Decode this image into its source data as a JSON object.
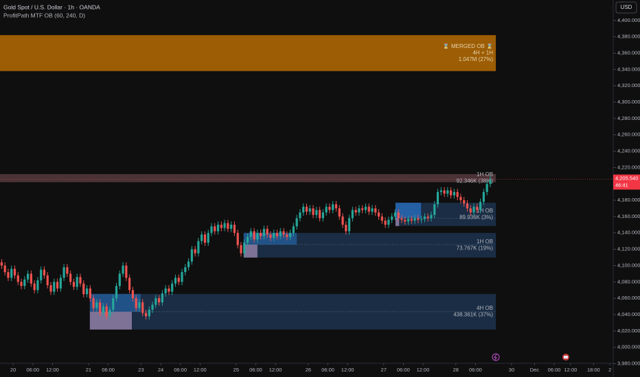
{
  "header": {
    "symbol": "Gold Spot / U.S. Dollar · 1h · OANDA",
    "indicator": "ProfitPath MTF OB (60, 240, D)",
    "currency": "USD"
  },
  "chart_data": {
    "type": "candlestick",
    "up_color": "#26a69a",
    "down_color": "#ef5350",
    "ylim": [
      3980,
      4425
    ],
    "xlim": [
      0,
      187
    ],
    "yticks": [
      {
        "value": 4400,
        "label": "4,400.000"
      },
      {
        "value": 4380,
        "label": "4,380.000"
      },
      {
        "value": 4360,
        "label": "4,360.000"
      },
      {
        "value": 4340,
        "label": "4,340.000"
      },
      {
        "value": 4320,
        "label": "4,320.000"
      },
      {
        "value": 4300,
        "label": "4,300.000"
      },
      {
        "value": 4280,
        "label": "4,280.000"
      },
      {
        "value": 4260,
        "label": "4,260.000"
      },
      {
        "value": 4240,
        "label": "4,240.000"
      },
      {
        "value": 4220,
        "label": "4,220.000"
      },
      {
        "value": 4200,
        "label": "4,200.000"
      },
      {
        "value": 4180,
        "label": "4,180.000"
      },
      {
        "value": 4160,
        "label": "4,160.000"
      },
      {
        "value": 4140,
        "label": "4,140.000"
      },
      {
        "value": 4120,
        "label": "4,120.000"
      },
      {
        "value": 4100,
        "label": "4,100.000"
      },
      {
        "value": 4080,
        "label": "4,080.000"
      },
      {
        "value": 4060,
        "label": "4,060.000"
      },
      {
        "value": 4040,
        "label": "4,040.000"
      },
      {
        "value": 4020,
        "label": "4,020.000"
      },
      {
        "value": 4000,
        "label": "4,000.000"
      },
      {
        "value": 3980,
        "label": "3,980.000"
      }
    ],
    "xticks": [
      {
        "value": 4,
        "label": "20"
      },
      {
        "value": 10,
        "label": "06:00"
      },
      {
        "value": 16,
        "label": "12:00"
      },
      {
        "value": 27,
        "label": "21"
      },
      {
        "value": 33,
        "label": "06:00"
      },
      {
        "value": 43,
        "label": "23"
      },
      {
        "value": 49,
        "label": "24"
      },
      {
        "value": 55,
        "label": "06:00"
      },
      {
        "value": 61,
        "label": "12:00"
      },
      {
        "value": 72,
        "label": "25"
      },
      {
        "value": 78,
        "label": "06:00"
      },
      {
        "value": 84,
        "label": "12:00"
      },
      {
        "value": 94,
        "label": "26"
      },
      {
        "value": 100,
        "label": "06:00"
      },
      {
        "value": 106,
        "label": "12:00"
      },
      {
        "value": 117,
        "label": "27"
      },
      {
        "value": 123,
        "label": "06:00"
      },
      {
        "value": 129,
        "label": "12:00"
      },
      {
        "value": 139,
        "label": "28"
      },
      {
        "value": 145,
        "label": "06:00"
      },
      {
        "value": 156,
        "label": "30"
      },
      {
        "value": 163,
        "label": "Dec"
      },
      {
        "value": 169,
        "label": "06:00"
      },
      {
        "value": 174,
        "label": "12:00"
      },
      {
        "value": 181,
        "label": "18:00"
      },
      {
        "value": 186,
        "label": "2"
      }
    ],
    "open": [
      4104,
      4100,
      4092,
      4085,
      4096,
      4088,
      4080,
      4075,
      4083,
      4090,
      4078,
      4070,
      4082,
      4095,
      4088,
      4076,
      4068,
      4080,
      4072,
      4085,
      4098,
      4090,
      4080,
      4074,
      4086,
      4078,
      4065,
      4072,
      4060,
      4048,
      4055,
      4042,
      4050,
      4038,
      4046,
      4060,
      4075,
      4090,
      4100,
      4085,
      4070,
      4060,
      4048,
      4055,
      4042,
      4038,
      4046,
      4052,
      4060,
      4055,
      4066,
      4072,
      4068,
      4078,
      4085,
      4080,
      4092,
      4098,
      4105,
      4120,
      4115,
      4130,
      4138,
      4128,
      4140,
      4148,
      4142,
      4150,
      4146,
      4152,
      4145,
      4150,
      4140,
      4125,
      4115,
      4128,
      4135,
      4142,
      4132,
      4140,
      4136,
      4145,
      4138,
      4134,
      4140,
      4136,
      4142,
      4138,
      4135,
      4140,
      4148,
      4158,
      4165,
      4172,
      4166,
      4170,
      4162,
      4168,
      4158,
      4165,
      4172,
      4168,
      4175,
      4170,
      4160,
      4150,
      4142,
      4158,
      4168,
      4165,
      4170,
      4168,
      4172,
      4166,
      4170,
      4165,
      4160,
      4155,
      4150,
      4156,
      4160,
      4165,
      4158,
      4156,
      4154,
      4157,
      4155,
      4158,
      4156,
      4157,
      4160,
      4158,
      4162,
      4175,
      4190,
      4192,
      4188,
      4192,
      4186,
      4190,
      4184,
      4180,
      4176,
      4170,
      4165,
      4172,
      4168,
      4178,
      4190,
      4200
    ],
    "high": [
      4108,
      4104,
      4096,
      4100,
      4100,
      4092,
      4084,
      4087,
      4094,
      4094,
      4082,
      4086,
      4099,
      4099,
      4092,
      4080,
      4084,
      4084,
      4089,
      4102,
      4102,
      4094,
      4084,
      4090,
      4090,
      4082,
      4076,
      4076,
      4064,
      4059,
      4059,
      4054,
      4054,
      4050,
      4064,
      4079,
      4094,
      4104,
      4104,
      4089,
      4074,
      4064,
      4059,
      4059,
      4046,
      4050,
      4056,
      4064,
      4064,
      4070,
      4076,
      4076,
      4082,
      4089,
      4089,
      4096,
      4102,
      4109,
      4124,
      4124,
      4134,
      4142,
      4142,
      4144,
      4152,
      4152,
      4154,
      4154,
      4156,
      4156,
      4154,
      4154,
      4144,
      4129,
      4132,
      4139,
      4146,
      4146,
      4144,
      4144,
      4149,
      4149,
      4142,
      4144,
      4144,
      4146,
      4146,
      4142,
      4144,
      4152,
      4162,
      4169,
      4176,
      4176,
      4174,
      4174,
      4172,
      4172,
      4169,
      4176,
      4176,
      4179,
      4179,
      4174,
      4164,
      4154,
      4162,
      4172,
      4172,
      4174,
      4174,
      4176,
      4176,
      4174,
      4174,
      4169,
      4164,
      4159,
      4160,
      4164,
      4169,
      4169,
      4162,
      4160,
      4161,
      4161,
      4162,
      4162,
      4161,
      4164,
      4164,
      4166,
      4179,
      4194,
      4196,
      4196,
      4196,
      4196,
      4194,
      4194,
      4188,
      4184,
      4180,
      4174,
      4176,
      4176,
      4182,
      4194,
      4204,
      4210
    ],
    "low": [
      4096,
      4088,
      4081,
      4081,
      4084,
      4076,
      4071,
      4071,
      4079,
      4074,
      4066,
      4066,
      4078,
      4084,
      4072,
      4064,
      4064,
      4068,
      4068,
      4081,
      4086,
      4076,
      4070,
      4070,
      4074,
      4061,
      4061,
      4056,
      4044,
      4044,
      4038,
      4038,
      4034,
      4034,
      4042,
      4056,
      4071,
      4086,
      4081,
      4066,
      4056,
      4044,
      4044,
      4038,
      4034,
      4034,
      4042,
      4048,
      4051,
      4051,
      4062,
      4064,
      4064,
      4074,
      4076,
      4076,
      4088,
      4094,
      4101,
      4111,
      4111,
      4126,
      4124,
      4124,
      4136,
      4138,
      4138,
      4142,
      4142,
      4141,
      4141,
      4136,
      4121,
      4111,
      4111,
      4124,
      4131,
      4128,
      4128,
      4132,
      4132,
      4134,
      4130,
      4130,
      4132,
      4132,
      4134,
      4131,
      4131,
      4136,
      4144,
      4154,
      4161,
      4162,
      4162,
      4158,
      4158,
      4154,
      4154,
      4161,
      4164,
      4164,
      4166,
      4156,
      4146,
      4138,
      4138,
      4154,
      4161,
      4161,
      4164,
      4164,
      4162,
      4162,
      4161,
      4156,
      4151,
      4146,
      4146,
      4152,
      4156,
      4154,
      4152,
      4150,
      4150,
      4151,
      4151,
      4152,
      4152,
      4153,
      4154,
      4154,
      4158,
      4171,
      4186,
      4184,
      4184,
      4182,
      4182,
      4180,
      4176,
      4172,
      4166,
      4161,
      4161,
      4164,
      4164,
      4174,
      4186,
      4196
    ],
    "close": [
      4100,
      4092,
      4085,
      4096,
      4088,
      4080,
      4075,
      4083,
      4090,
      4078,
      4070,
      4082,
      4095,
      4088,
      4076,
      4068,
      4080,
      4072,
      4085,
      4098,
      4090,
      4080,
      4074,
      4086,
      4078,
      4065,
      4072,
      4060,
      4048,
      4055,
      4042,
      4050,
      4038,
      4046,
      4060,
      4075,
      4090,
      4100,
      4085,
      4070,
      4060,
      4048,
      4055,
      4042,
      4038,
      4046,
      4052,
      4060,
      4055,
      4066,
      4072,
      4068,
      4078,
      4085,
      4080,
      4092,
      4098,
      4105,
      4120,
      4115,
      4130,
      4138,
      4128,
      4140,
      4148,
      4142,
      4150,
      4146,
      4152,
      4145,
      4150,
      4140,
      4125,
      4115,
      4128,
      4135,
      4142,
      4132,
      4140,
      4136,
      4145,
      4138,
      4134,
      4140,
      4136,
      4142,
      4138,
      4135,
      4140,
      4148,
      4158,
      4165,
      4172,
      4166,
      4170,
      4162,
      4168,
      4158,
      4165,
      4172,
      4168,
      4175,
      4170,
      4160,
      4150,
      4142,
      4158,
      4168,
      4165,
      4170,
      4168,
      4172,
      4166,
      4170,
      4165,
      4160,
      4155,
      4150,
      4156,
      4160,
      4165,
      4158,
      4156,
      4154,
      4157,
      4155,
      4158,
      4156,
      4157,
      4160,
      4158,
      4162,
      4175,
      4190,
      4192,
      4188,
      4192,
      4186,
      4190,
      4184,
      4180,
      4176,
      4170,
      4165,
      4172,
      4168,
      4178,
      4190,
      4200,
      4205.54
    ],
    "zones": [
      {
        "title": "⌛ MERGED OB ⌛",
        "subtitle": "4H + 1H",
        "volume": "1.047M (27%)",
        "low": 4338,
        "high": 4382,
        "start": 0,
        "end": 151.2,
        "color": "#9c5d05"
      },
      {
        "title": "1H OB",
        "volume": "92.346K (38%)",
        "low": 4202,
        "high": 4212,
        "start": 0,
        "end": 151.2,
        "color": "#4a3236"
      },
      {
        "title": "1H OB",
        "volume": "89.936K (3%)",
        "low": 4148.4,
        "high": 4176.9,
        "start": 120.6,
        "end": 151.2,
        "color": "#1a2d44",
        "inner": {
          "low": 4158,
          "high": 4176.9,
          "end": 128.4,
          "color": "#2766b0"
        },
        "base": {
          "low": 4148.4,
          "high": 4158,
          "end": 121.7,
          "color": "#8a7aa0"
        }
      },
      {
        "title": "1H OB",
        "volume": "73.767K (19%)",
        "low": 4109.8,
        "high": 4140,
        "start": 74.3,
        "end": 151.2,
        "color": "#1a2d44",
        "inner": {
          "low": 4125.7,
          "high": 4140,
          "end": 90.5,
          "color": "#22568f"
        },
        "base": {
          "low": 4109.8,
          "high": 4125.7,
          "end": 78.5,
          "color": "#8a7aa0"
        }
      },
      {
        "title": "4H OB",
        "volume": "438.361K (37%)",
        "low": 4021.7,
        "high": 4065.3,
        "start": 27.4,
        "end": 151.2,
        "color": "#1a2d44",
        "inner": {
          "low": 4043.5,
          "high": 4065.3,
          "end": 42.9,
          "color": "#22568f"
        },
        "base": {
          "low": 4021.7,
          "high": 4043.5,
          "end": 40.2,
          "color": "#8a7aa0"
        }
      }
    ],
    "last_price": {
      "value": 4205.54,
      "label": "4,205.540"
    },
    "countdown": "46:41"
  }
}
